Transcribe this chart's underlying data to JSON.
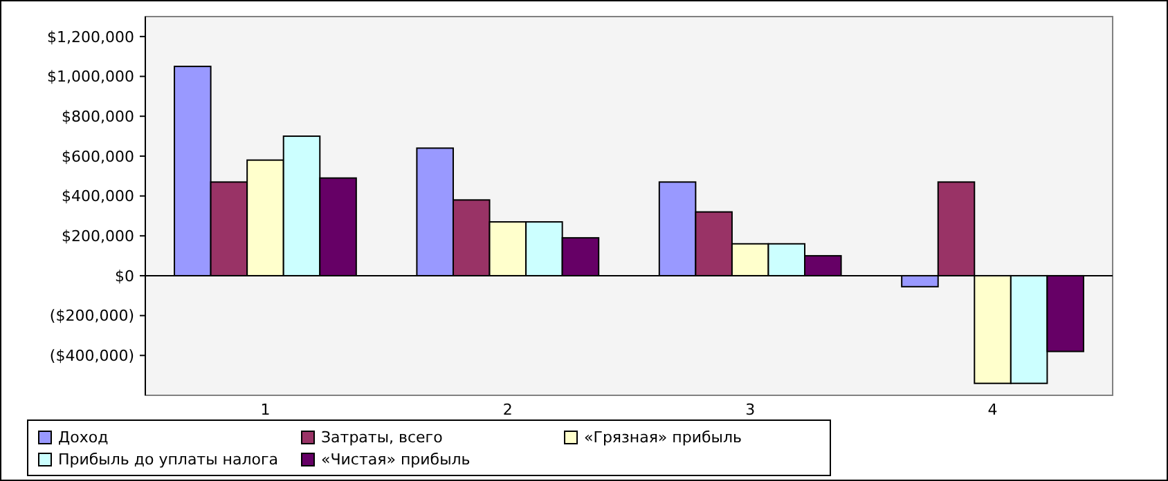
{
  "chart_data": {
    "type": "bar",
    "categories": [
      "1",
      "2",
      "3",
      "4"
    ],
    "series": [
      {
        "name": "Доход",
        "color": "#9999ff",
        "values": [
          1050000,
          640000,
          470000,
          -55000
        ]
      },
      {
        "name": "Затраты, всего",
        "color": "#993366",
        "values": [
          470000,
          380000,
          320000,
          470000
        ]
      },
      {
        "name": "«Грязная» прибыль",
        "color": "#ffffcc",
        "values": [
          580000,
          270000,
          160000,
          -540000
        ]
      },
      {
        "name": "Прибыль до уплаты налога",
        "color": "#ccffff",
        "values": [
          700000,
          270000,
          160000,
          -540000
        ]
      },
      {
        "name": "«Чистая» прибыль",
        "color": "#660066",
        "values": [
          490000,
          190000,
          100000,
          -380000
        ]
      }
    ],
    "ylim": [
      -600000,
      1300000
    ],
    "yticks": [
      {
        "value": -400000,
        "label": "($400,000)"
      },
      {
        "value": -200000,
        "label": "($200,000)"
      },
      {
        "value": 0,
        "label": "$0"
      },
      {
        "value": 200000,
        "label": "$200,000"
      },
      {
        "value": 400000,
        "label": "$400,000"
      },
      {
        "value": 600000,
        "label": "$600,000"
      },
      {
        "value": 800000,
        "label": "$800,000"
      },
      {
        "value": 1000000,
        "label": "$1,000,000"
      },
      {
        "value": 1200000,
        "label": "$1,200,000"
      }
    ],
    "legend": "bottom left"
  }
}
